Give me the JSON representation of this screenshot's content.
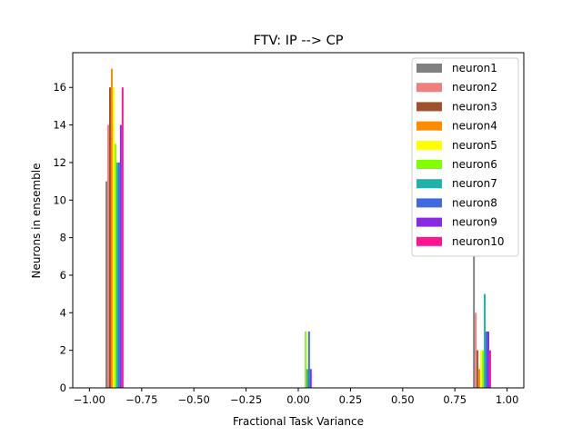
{
  "chart_data": {
    "type": "bar",
    "title": "FTV: IP --> CP",
    "xlabel": "Fractional Task Variance",
    "ylabel": "Neurons in ensemble",
    "xlim": [
      -1.08,
      1.08
    ],
    "ylim": [
      0,
      17.85
    ],
    "xticks": [
      -1.0,
      -0.75,
      -0.5,
      -0.25,
      0.0,
      0.25,
      0.5,
      0.75,
      1.0
    ],
    "xtick_labels": [
      "−1.00",
      "−0.75",
      "−0.50",
      "−0.25",
      "0.00",
      "0.25",
      "0.50",
      "0.75",
      "1.00"
    ],
    "yticks": [
      0,
      2,
      4,
      6,
      8,
      10,
      12,
      14,
      16
    ],
    "ytick_labels": [
      "0",
      "2",
      "4",
      "6",
      "8",
      "10",
      "12",
      "14",
      "16"
    ],
    "grid": false,
    "legend_position": "top-right",
    "bin_groups": [
      -0.88,
      0.03,
      0.88
    ],
    "bar_width_units": 0.0086,
    "series": [
      {
        "name": "neuron1",
        "color": "#808080",
        "values": [
          11,
          0,
          7
        ]
      },
      {
        "name": "neuron2",
        "color": "#f08080",
        "values": [
          14,
          0,
          4
        ]
      },
      {
        "name": "neuron3",
        "color": "#a0522d",
        "values": [
          16,
          0,
          2
        ]
      },
      {
        "name": "neuron4",
        "color": "#ff8c00",
        "values": [
          17,
          0,
          1
        ]
      },
      {
        "name": "neuron5",
        "color": "#ffff00",
        "values": [
          16,
          0,
          2
        ]
      },
      {
        "name": "neuron6",
        "color": "#7fff00",
        "values": [
          13,
          3,
          2
        ]
      },
      {
        "name": "neuron7",
        "color": "#20b2aa",
        "values": [
          12,
          1,
          5
        ]
      },
      {
        "name": "neuron8",
        "color": "#4169e1",
        "values": [
          12,
          3,
          3
        ]
      },
      {
        "name": "neuron9",
        "color": "#8a2be2",
        "values": [
          14,
          1,
          3
        ]
      },
      {
        "name": "neuron10",
        "color": "#ff1493",
        "values": [
          16,
          0,
          2
        ]
      }
    ]
  }
}
